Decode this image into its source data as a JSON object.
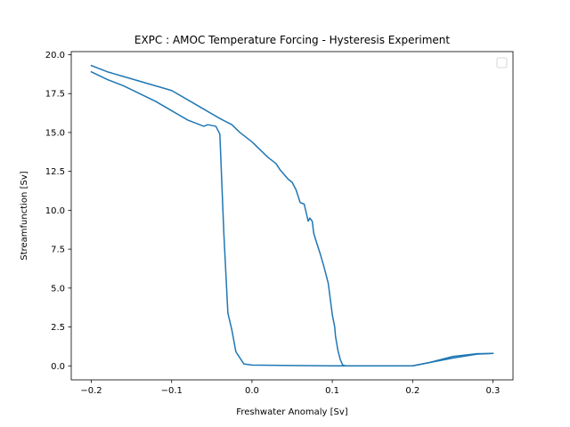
{
  "chart_data": {
    "type": "line",
    "title": "EXPC : AMOC Temperature Forcing - Hysteresis Experiment",
    "xlabel": "Freshwater Anomaly [Sv]",
    "ylabel": "Streamfunction [Sv]",
    "xlim": [
      -0.225,
      0.325
    ],
    "ylim": [
      -0.9,
      20.2
    ],
    "xticks": [
      -0.2,
      -0.1,
      0.0,
      0.1,
      0.2,
      0.3
    ],
    "xtick_labels": [
      "−0.2",
      "−0.1",
      "0.0",
      "0.1",
      "0.2",
      "0.3"
    ],
    "yticks": [
      0.0,
      2.5,
      5.0,
      7.5,
      10.0,
      12.5,
      15.0,
      17.5,
      20.0
    ],
    "ytick_labels": [
      "0.0",
      "2.5",
      "5.0",
      "7.5",
      "10.0",
      "12.5",
      "15.0",
      "17.5",
      "20.0"
    ],
    "grid": false,
    "legend": {
      "placement": "top-right",
      "entries": []
    },
    "color": "#1f77b4",
    "series": [
      {
        "x": [
          -0.2,
          -0.18,
          -0.16,
          -0.14,
          -0.12,
          -0.1,
          -0.08,
          -0.06,
          -0.04,
          -0.025,
          -0.015,
          -0.005,
          0.0,
          0.01,
          0.02,
          0.03,
          0.035,
          0.04,
          0.045,
          0.05,
          0.055,
          0.06,
          0.065,
          0.07,
          0.072,
          0.075,
          0.077,
          0.08,
          0.085,
          0.09,
          0.095,
          0.1,
          0.103,
          0.104,
          0.107,
          0.11,
          0.113,
          0.115,
          0.117,
          0.12,
          0.15,
          0.2,
          0.25,
          0.28,
          0.3
        ],
        "y": [
          19.3,
          18.9,
          18.6,
          18.3,
          18.0,
          17.7,
          17.1,
          16.5,
          15.9,
          15.5,
          15.0,
          14.6,
          14.4,
          13.9,
          13.4,
          13.0,
          12.6,
          12.3,
          12.0,
          11.8,
          11.3,
          10.5,
          10.4,
          9.3,
          9.5,
          9.3,
          8.5,
          8.0,
          7.2,
          6.3,
          5.3,
          3.3,
          2.5,
          1.9,
          1.0,
          0.4,
          0.05,
          0.02,
          0.0,
          0.0,
          0.0,
          0.0,
          0.5,
          0.75,
          0.8
        ]
      },
      {
        "x": [
          0.3,
          0.28,
          0.25,
          0.22,
          0.2,
          0.1,
          0.05,
          0.0,
          -0.01,
          -0.02,
          -0.025,
          -0.03,
          -0.035,
          -0.04,
          -0.045,
          -0.055,
          -0.06,
          -0.08,
          -0.1,
          -0.12,
          -0.14,
          -0.16,
          -0.18,
          -0.2
        ],
        "y": [
          0.8,
          0.78,
          0.6,
          0.2,
          0.0,
          0.0,
          0.02,
          0.05,
          0.12,
          0.9,
          2.3,
          3.4,
          8.5,
          14.9,
          15.4,
          15.5,
          15.4,
          15.8,
          16.4,
          17.0,
          17.5,
          18.0,
          18.4,
          18.9
        ]
      }
    ]
  }
}
